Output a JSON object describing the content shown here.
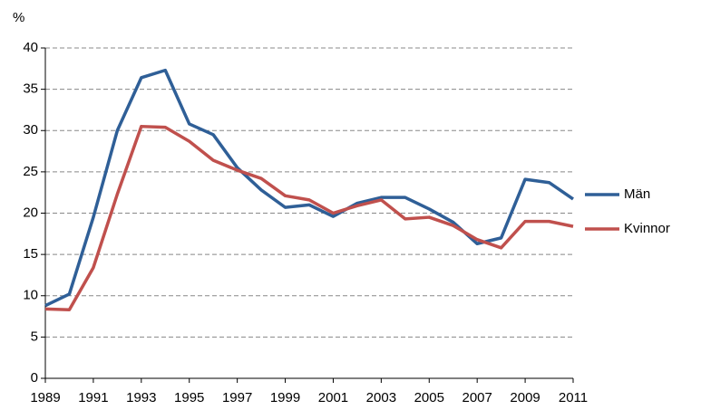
{
  "chart_data": {
    "type": "line",
    "y_label": "%",
    "x": [
      1989,
      1990,
      1991,
      1992,
      1993,
      1994,
      1995,
      1996,
      1997,
      1998,
      1999,
      2000,
      2001,
      2002,
      2003,
      2004,
      2005,
      2006,
      2007,
      2008,
      2009,
      2010,
      2011
    ],
    "series": [
      {
        "name": "Män",
        "color": "#2f5f97",
        "values": [
          8.8,
          10.2,
          19.5,
          30,
          36.4,
          37.3,
          30.8,
          29.5,
          25.5,
          22.8,
          20.7,
          21.0,
          19.6,
          21.2,
          21.9,
          21.9,
          20.5,
          18.9,
          16.3,
          17.0,
          24.1,
          23.7,
          21.7
        ]
      },
      {
        "name": "Kvinnor",
        "color": "#c0504d",
        "values": [
          8.4,
          8.3,
          13.4,
          22.3,
          30.5,
          30.4,
          28.7,
          26.4,
          25.2,
          24.2,
          22.1,
          21.6,
          20.0,
          20.9,
          21.6,
          19.3,
          19.5,
          18.5,
          16.8,
          15.8,
          19.0,
          19.0,
          18.4
        ]
      }
    ],
    "xlim": [
      1989,
      2011
    ],
    "xticks": [
      1989,
      1991,
      1993,
      1995,
      1997,
      1999,
      2001,
      2003,
      2005,
      2007,
      2009,
      2011
    ],
    "ylim": [
      0,
      40
    ],
    "yticks": [
      0,
      5,
      10,
      15,
      20,
      25,
      30,
      35,
      40
    ],
    "grid": true,
    "legend": "right"
  }
}
